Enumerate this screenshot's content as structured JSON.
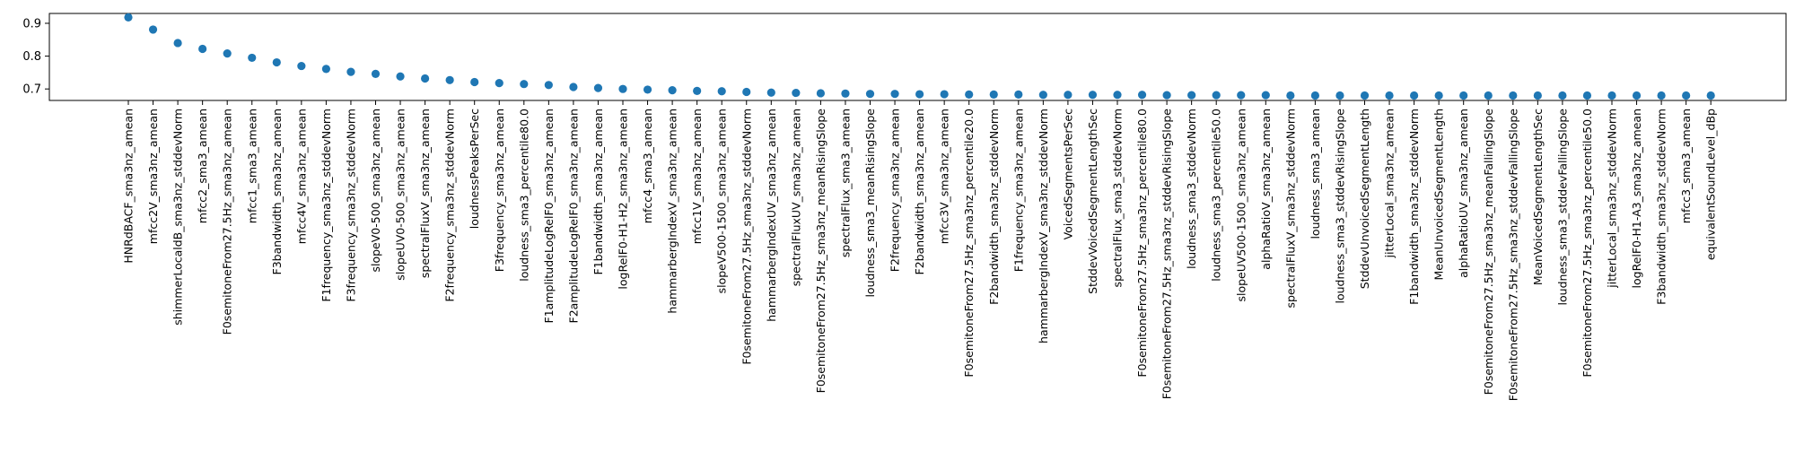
{
  "chart_data": {
    "type": "scatter",
    "title": "",
    "xlabel": "",
    "ylabel": "",
    "ylim": [
      0.665,
      0.93
    ],
    "yticks": [
      0.7,
      0.8,
      0.9
    ],
    "ytick_labels": [
      "0.7",
      "0.8",
      "0.9"
    ],
    "grid": false,
    "marker_color": "#1f77b4",
    "categories": [
      "HNRdBACF_sma3nz_amean",
      "mfcc2V_sma3nz_amean",
      "shimmerLocaldB_sma3nz_stddevNorm",
      "mfcc2_sma3_amean",
      "F0semitoneFrom27.5Hz_sma3nz_amean",
      "mfcc1_sma3_amean",
      "F3bandwidth_sma3nz_amean",
      "mfcc4V_sma3nz_amean",
      "F1frequency_sma3nz_stddevNorm",
      "F3frequency_sma3nz_stddevNorm",
      "slopeV0-500_sma3nz_amean",
      "slopeUV0-500_sma3nz_amean",
      "spectralFluxV_sma3nz_amean",
      "F2frequency_sma3nz_stddevNorm",
      "loudnessPeaksPerSec",
      "F3frequency_sma3nz_amean",
      "loudness_sma3_percentile80.0",
      "F1amplitudeLogRelF0_sma3nz_amean",
      "F2amplitudeLogRelF0_sma3nz_amean",
      "F1bandwidth_sma3nz_amean",
      "logRelF0-H1-H2_sma3nz_amean",
      "mfcc4_sma3_amean",
      "hammarbergIndexV_sma3nz_amean",
      "mfcc1V_sma3nz_amean",
      "slopeV500-1500_sma3nz_amean",
      "F0semitoneFrom27.5Hz_sma3nz_stddevNorm",
      "hammarbergIndexUV_sma3nz_amean",
      "spectralFluxUV_sma3nz_amean",
      "F0semitoneFrom27.5Hz_sma3nz_meanRisingSlope",
      "spectralFlux_sma3_amean",
      "loudness_sma3_meanRisingSlope",
      "F2frequency_sma3nz_amean",
      "F2bandwidth_sma3nz_amean",
      "mfcc3V_sma3nz_amean",
      "F0semitoneFrom27.5Hz_sma3nz_percentile20.0",
      "F2bandwidth_sma3nz_stddevNorm",
      "F1frequency_sma3nz_amean",
      "hammarbergIndexV_sma3nz_stddevNorm",
      "VoicedSegmentsPerSec",
      "StddevVoicedSegmentLengthSec",
      "spectralFlux_sma3_stddevNorm",
      "F0semitoneFrom27.5Hz_sma3nz_percentile80.0",
      "F0semitoneFrom27.5Hz_sma3nz_stddevRisingSlope",
      "loudness_sma3_stddevNorm",
      "loudness_sma3_percentile50.0",
      "slopeUV500-1500_sma3nz_amean",
      "alphaRatioV_sma3nz_amean",
      "spectralFluxV_sma3nz_stddevNorm",
      "loudness_sma3_amean",
      "loudness_sma3_stddevRisingSlope",
      "StddevUnvoicedSegmentLength",
      "jitterLocal_sma3nz_amean",
      "F1bandwidth_sma3nz_stddevNorm",
      "MeanUnvoicedSegmentLength",
      "alphaRatioUV_sma3nz_amean",
      "F0semitoneFrom27.5Hz_sma3nz_meanFallingSlope",
      "F0semitoneFrom27.5Hz_sma3nz_stddevFallingSlope",
      "MeanVoicedSegmentLengthSec",
      "loudness_sma3_stddevFallingSlope",
      "F0semitoneFrom27.5Hz_sma3nz_percentile50.0",
      "jitterLocal_sma3nz_stddevNorm",
      "logRelF0-H1-A3_sma3nz_amean",
      "F3bandwidth_sma3nz_stddevNorm",
      "mfcc3_sma3_amean",
      "equivalentSoundLevel_dBp"
    ],
    "values": [
      0.918,
      0.881,
      0.84,
      0.822,
      0.808,
      0.795,
      0.781,
      0.77,
      0.761,
      0.752,
      0.746,
      0.738,
      0.732,
      0.727,
      0.721,
      0.718,
      0.715,
      0.712,
      0.706,
      0.703,
      0.7,
      0.698,
      0.696,
      0.694,
      0.693,
      0.691,
      0.689,
      0.688,
      0.687,
      0.686,
      0.685,
      0.685,
      0.684,
      0.684,
      0.683,
      0.683,
      0.683,
      0.682,
      0.682,
      0.682,
      0.682,
      0.682,
      0.681,
      0.681,
      0.681,
      0.681,
      0.681,
      0.68,
      0.68,
      0.68,
      0.68,
      0.68,
      0.68,
      0.68,
      0.68,
      0.68,
      0.68,
      0.68,
      0.68,
      0.68,
      0.68,
      0.68,
      0.68,
      0.68,
      0.68
    ]
  }
}
